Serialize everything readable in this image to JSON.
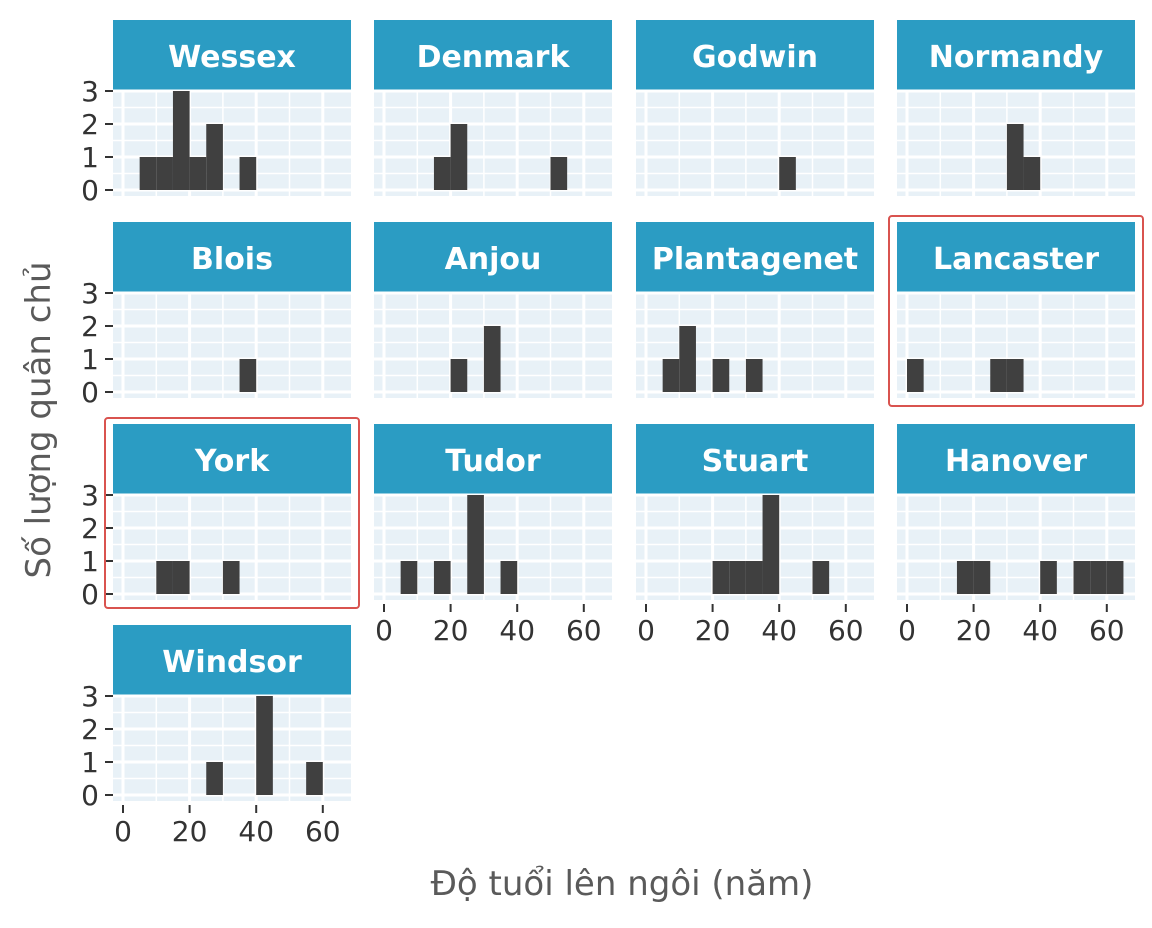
{
  "chart_data": {
    "type": "bar",
    "subtype": "faceted-histogram",
    "xlabel": "Độ tuổi lên ngôi (năm)",
    "ylabel": "Số lượng quân chủ",
    "xlim": [
      0,
      68
    ],
    "ylim": [
      0,
      3
    ],
    "x_ticks": [
      0,
      20,
      40,
      60
    ],
    "y_ticks": [
      0,
      1,
      2,
      3
    ],
    "bin_width": 5,
    "grid": true,
    "colors": {
      "strip": "#2b9cc3",
      "panel": "#e8f1f7",
      "bar": "#404040",
      "highlight": "#d9534f"
    },
    "highlighted_facets": [
      "Lancaster",
      "York"
    ],
    "facets": [
      {
        "name": "Wessex",
        "bins": [
          [
            7.5,
            1
          ],
          [
            12.5,
            1
          ],
          [
            17.5,
            3
          ],
          [
            22.5,
            1
          ],
          [
            27.5,
            2
          ],
          [
            37.5,
            1
          ]
        ]
      },
      {
        "name": "Denmark",
        "bins": [
          [
            17.5,
            1
          ],
          [
            22.5,
            2
          ],
          [
            52.5,
            1
          ]
        ]
      },
      {
        "name": "Godwin",
        "bins": [
          [
            42.5,
            1
          ]
        ]
      },
      {
        "name": "Normandy",
        "bins": [
          [
            32.5,
            2
          ],
          [
            37.5,
            1
          ]
        ]
      },
      {
        "name": "Blois",
        "bins": [
          [
            37.5,
            1
          ]
        ]
      },
      {
        "name": "Anjou",
        "bins": [
          [
            22.5,
            1
          ],
          [
            32.5,
            2
          ]
        ]
      },
      {
        "name": "Plantagenet",
        "bins": [
          [
            7.5,
            1
          ],
          [
            12.5,
            2
          ],
          [
            22.5,
            1
          ],
          [
            32.5,
            1
          ]
        ]
      },
      {
        "name": "Lancaster",
        "bins": [
          [
            2.5,
            1
          ],
          [
            27.5,
            1
          ],
          [
            32.5,
            1
          ]
        ]
      },
      {
        "name": "York",
        "bins": [
          [
            12.5,
            1
          ],
          [
            17.5,
            1
          ],
          [
            32.5,
            1
          ]
        ]
      },
      {
        "name": "Tudor",
        "bins": [
          [
            7.5,
            1
          ],
          [
            17.5,
            1
          ],
          [
            27.5,
            3
          ],
          [
            37.5,
            1
          ]
        ]
      },
      {
        "name": "Stuart",
        "bins": [
          [
            22.5,
            1
          ],
          [
            27.5,
            1
          ],
          [
            32.5,
            1
          ],
          [
            37.5,
            3
          ],
          [
            52.5,
            1
          ]
        ]
      },
      {
        "name": "Hanover",
        "bins": [
          [
            17.5,
            1
          ],
          [
            22.5,
            1
          ],
          [
            42.5,
            1
          ],
          [
            52.5,
            1
          ],
          [
            57.5,
            1
          ],
          [
            62.5,
            1
          ]
        ]
      },
      {
        "name": "Windsor",
        "bins": [
          [
            27.5,
            1
          ],
          [
            42.5,
            3
          ],
          [
            57.5,
            1
          ]
        ]
      }
    ]
  }
}
